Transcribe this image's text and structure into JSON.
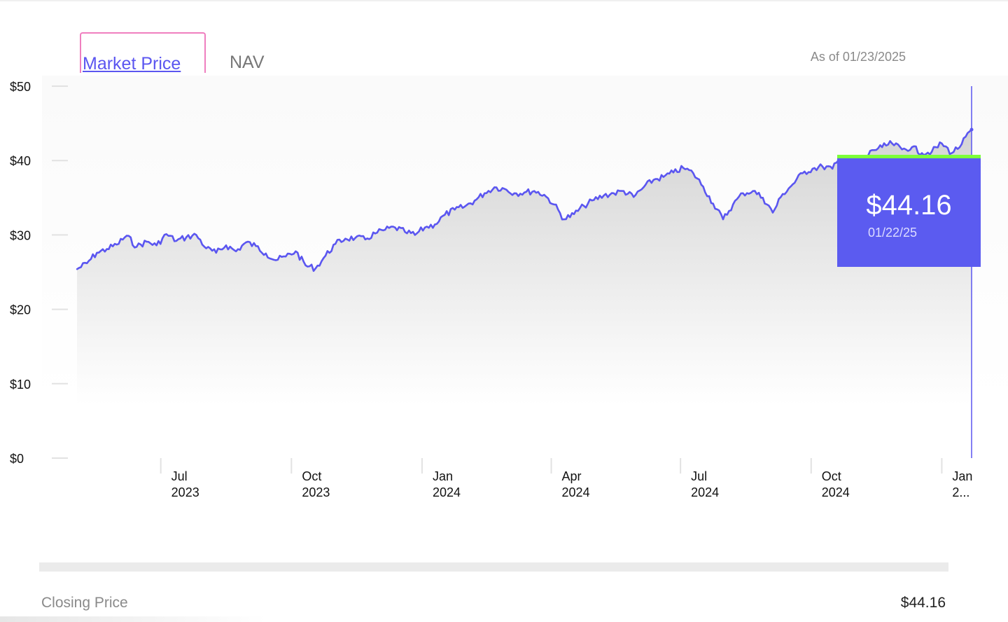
{
  "tabs": {
    "market_price": "Market Price",
    "nav": "NAV"
  },
  "as_of": "As of 01/23/2025",
  "tooltip": {
    "value": "$44.16",
    "date": "01/22/25"
  },
  "footer": {
    "closing_label": "Closing Price",
    "closing_value": "$44.16"
  },
  "colors": {
    "line": "#5b56f0",
    "tooltip_bg": "#5b5bf0",
    "tooltip_accent": "#7cff3a",
    "tab_outline": "#ef7fbf"
  },
  "chart_data": {
    "type": "area",
    "title": "",
    "xlabel": "",
    "ylabel": "",
    "ylim": [
      0,
      50
    ],
    "y_ticks": [
      "$0",
      "$10",
      "$20",
      "$30",
      "$40",
      "$50"
    ],
    "x_ticks": [
      {
        "month": "Jul",
        "year": "2023"
      },
      {
        "month": "Oct",
        "year": "2023"
      },
      {
        "month": "Jan",
        "year": "2024"
      },
      {
        "month": "Apr",
        "year": "2024"
      },
      {
        "month": "Jul",
        "year": "2024"
      },
      {
        "month": "Oct",
        "year": "2024"
      },
      {
        "month": "Jan",
        "year": "2..."
      }
    ],
    "x_range": [
      "2023-05-03",
      "2025-01-22"
    ],
    "grid": false,
    "series": [
      {
        "x": [
          "2023-05-03",
          "2023-05-10",
          "2023-05-17",
          "2023-05-24",
          "2023-05-31",
          "2023-06-07",
          "2023-06-14",
          "2023-06-21",
          "2023-06-28",
          "2023-07-05",
          "2023-07-12",
          "2023-07-19",
          "2023-07-26",
          "2023-08-02",
          "2023-08-09",
          "2023-08-16",
          "2023-08-23",
          "2023-08-30",
          "2023-09-06",
          "2023-09-13",
          "2023-09-20",
          "2023-09-27",
          "2023-10-04",
          "2023-10-11",
          "2023-10-18",
          "2023-10-25",
          "2023-11-01",
          "2023-11-08",
          "2023-11-15",
          "2023-11-22",
          "2023-11-29",
          "2023-12-06",
          "2023-12-13",
          "2023-12-20",
          "2023-12-27",
          "2024-01-03",
          "2024-01-10",
          "2024-01-17",
          "2024-01-24",
          "2024-01-31",
          "2024-02-07",
          "2024-02-14",
          "2024-02-21",
          "2024-02-28",
          "2024-03-06",
          "2024-03-13",
          "2024-03-20",
          "2024-03-27",
          "2024-04-03",
          "2024-04-10",
          "2024-04-17",
          "2024-04-24",
          "2024-05-01",
          "2024-05-08",
          "2024-05-15",
          "2024-05-22",
          "2024-05-29",
          "2024-06-05",
          "2024-06-12",
          "2024-06-19",
          "2024-06-26",
          "2024-07-03",
          "2024-07-10",
          "2024-07-17",
          "2024-07-24",
          "2024-07-31",
          "2024-08-07",
          "2024-08-14",
          "2024-08-21",
          "2024-08-28",
          "2024-09-04",
          "2024-09-11",
          "2024-09-18",
          "2024-09-25",
          "2024-10-02",
          "2024-10-09",
          "2024-10-16",
          "2024-10-23",
          "2024-10-30",
          "2024-11-06",
          "2024-11-13",
          "2024-11-20",
          "2024-11-27",
          "2024-12-04",
          "2024-12-11",
          "2024-12-18",
          "2024-12-25",
          "2025-01-01",
          "2025-01-08",
          "2025-01-15",
          "2025-01-22"
        ],
        "y": [
          25.4,
          26.2,
          27.6,
          28.1,
          28.7,
          29.9,
          28.4,
          29.1,
          28.6,
          30.1,
          29.2,
          29.7,
          30.0,
          28.2,
          27.6,
          28.6,
          27.8,
          29.0,
          28.5,
          27.5,
          26.6,
          27.1,
          27.8,
          25.9,
          25.5,
          27.2,
          28.8,
          29.5,
          29.6,
          29.4,
          30.2,
          30.7,
          31.0,
          30.4,
          30.0,
          31.0,
          31.4,
          32.7,
          33.4,
          33.8,
          34.6,
          35.6,
          36.4,
          36.2,
          35.6,
          35.7,
          35.9,
          35.4,
          34.1,
          32.1,
          32.8,
          33.9,
          34.7,
          35.3,
          35.6,
          35.9,
          35.1,
          36.4,
          37.4,
          37.8,
          38.4,
          39.0,
          38.3,
          36.5,
          34.2,
          32.1,
          34.1,
          35.6,
          35.9,
          35.0,
          33.0,
          35.5,
          36.8,
          38.3,
          38.9,
          39.2,
          38.9,
          40.6,
          40.1,
          39.8,
          41.4,
          41.8,
          42.3,
          41.5,
          41.8,
          41.0,
          41.2,
          42.3,
          41.0,
          42.2,
          44.16
        ]
      }
    ]
  }
}
